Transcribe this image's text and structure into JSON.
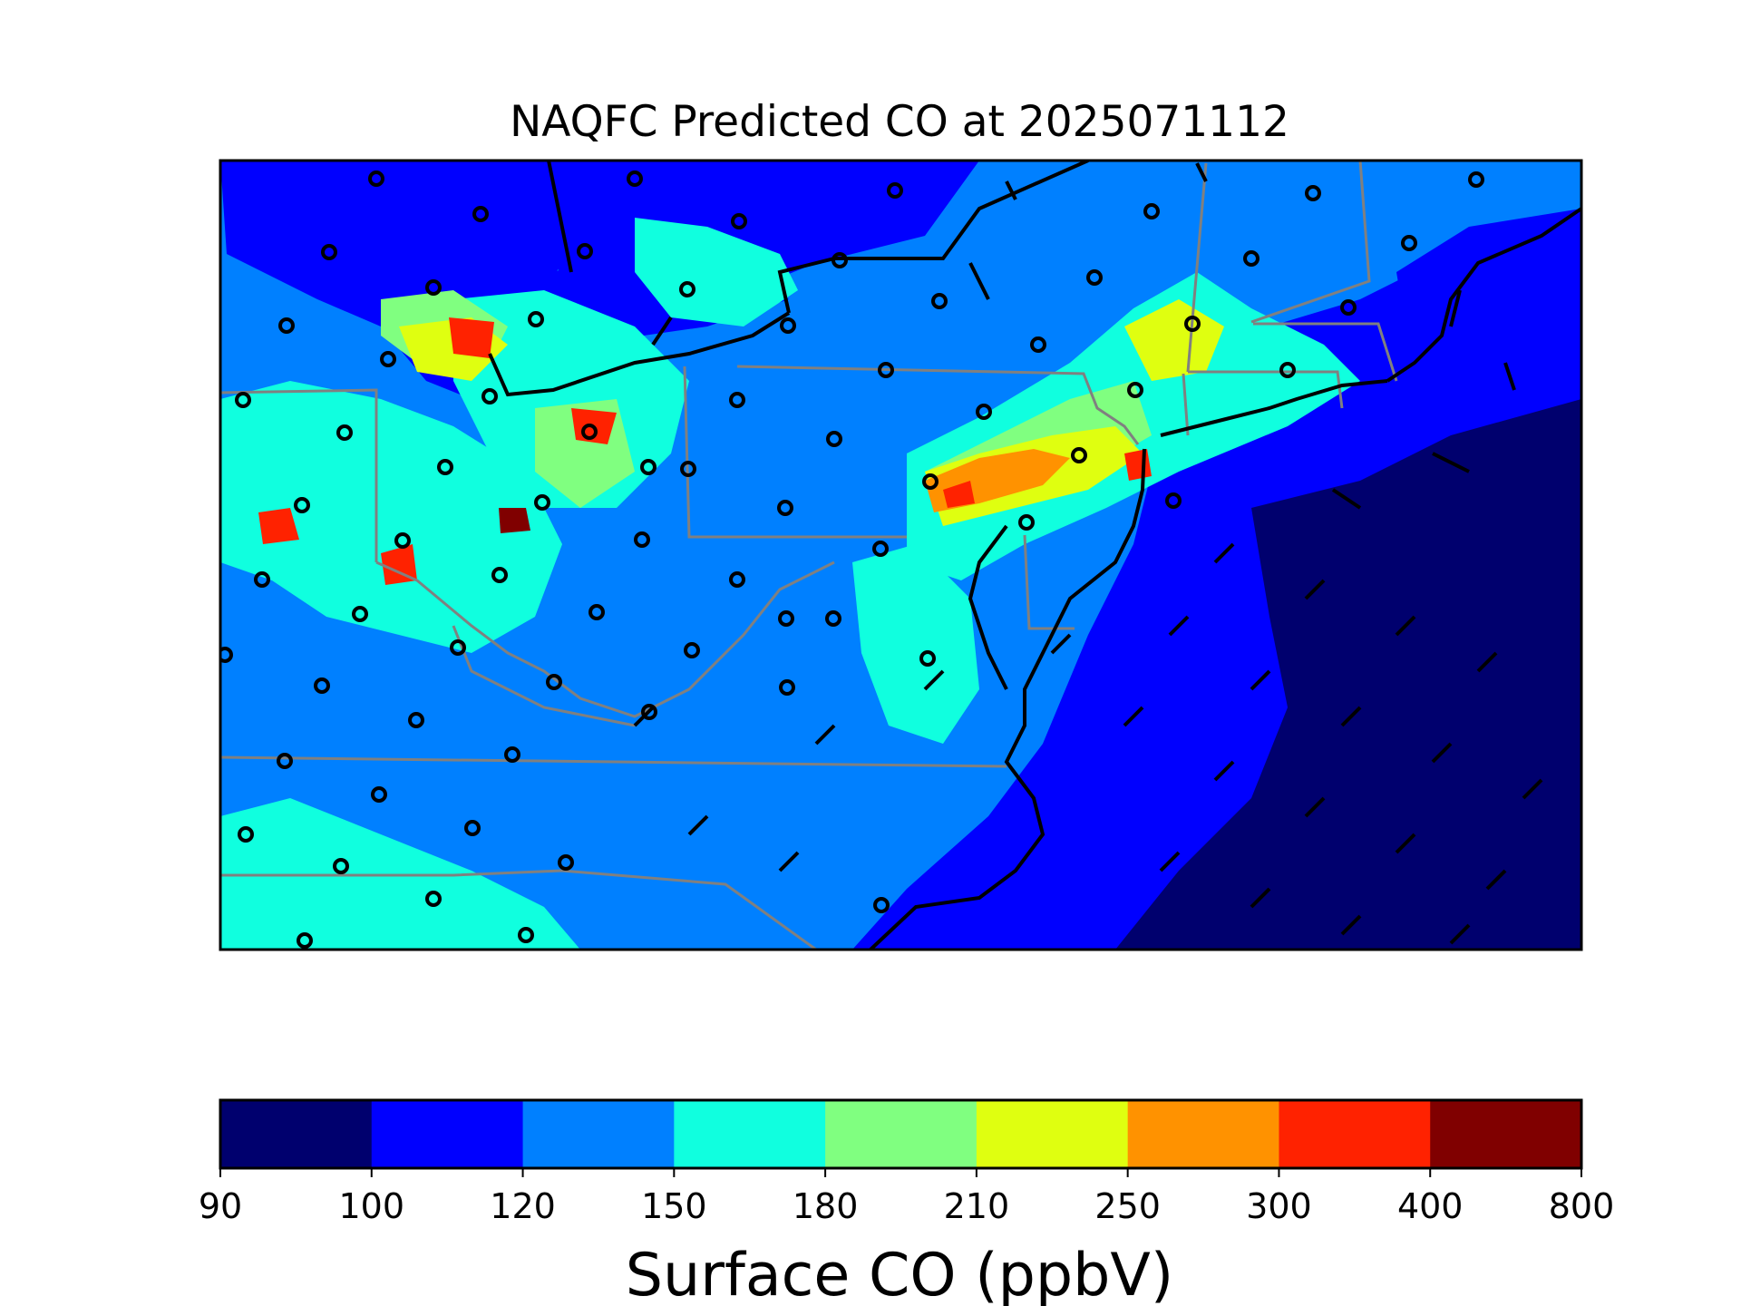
{
  "title": "NAQFC Predicted CO at 2025071112",
  "colorbar": {
    "label": "Surface CO (ppbV)",
    "ticks": [
      "90",
      "100",
      "120",
      "150",
      "180",
      "210",
      "250",
      "300",
      "400",
      "800"
    ],
    "colors": [
      "#00006e",
      "#0000ff",
      "#0080ff",
      "#10ffdf",
      "#80ff80",
      "#dfff10",
      "#ff9200",
      "#ff2200",
      "#800000"
    ]
  },
  "chart_data": {
    "type": "heatmap",
    "title": "NAQFC Predicted CO at 2025071112",
    "colorbar_label": "Surface CO (ppbV)",
    "levels": [
      90,
      100,
      120,
      150,
      180,
      210,
      250,
      300,
      400,
      800
    ],
    "level_colors": [
      "#00006e",
      "#0000ff",
      "#0080ff",
      "#10ffdf",
      "#80ff80",
      "#dfff10",
      "#ff9200",
      "#ff2200",
      "#800000"
    ],
    "overlays": [
      "coastlines",
      "state boundaries",
      "monitoring station circles",
      "wind barbs"
    ]
  }
}
